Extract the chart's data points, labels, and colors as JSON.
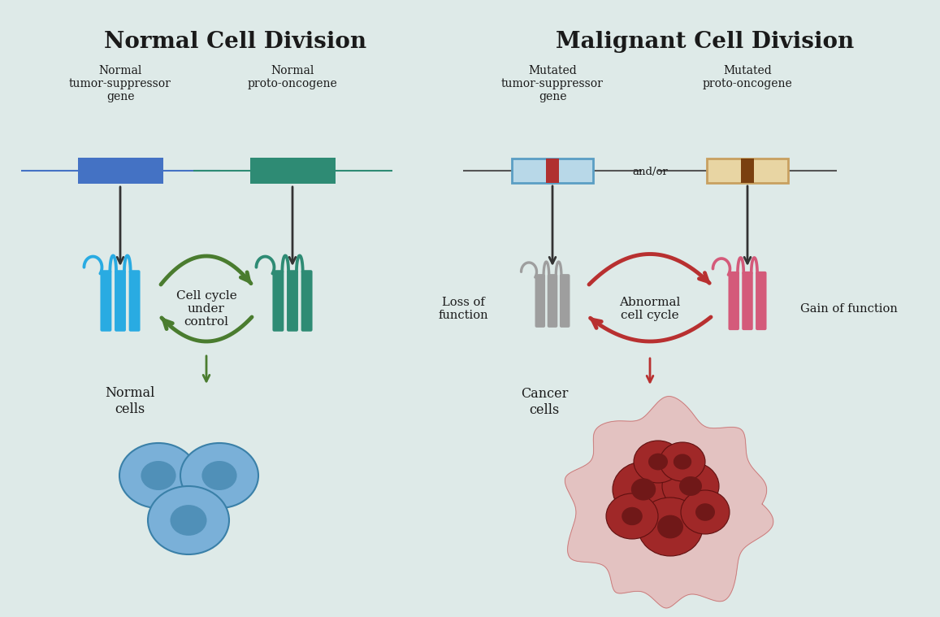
{
  "bg_color": "#deeae8",
  "title_left": "Normal Cell Division",
  "title_right": "Malignant Cell Division",
  "title_fontsize": 20,
  "title_fontweight": "bold",
  "label_normal_tsg": "Normal\ntumor-suppressor\ngene",
  "label_normal_proto": "Normal\nproto-oncogene",
  "label_mutated_tsg": "Mutated\ntumor-suppressor\ngene",
  "label_mutated_proto": "Mutated\nproto-oncogene",
  "label_cell_cycle_normal": "Cell cycle\nunder\ncontrol",
  "label_cell_cycle_abnormal": "Abnormal\ncell cycle",
  "label_normal_cells": "Normal\ncells",
  "label_cancer_cells": "Cancer\ncells",
  "label_loss_of_function": "Loss of\nfunction",
  "label_gain_of_function": "Gain of function",
  "label_and_or": "and/or",
  "color_normal_tsg": "#4472c4",
  "color_normal_proto": "#2e8b74",
  "color_mutated_tsg_bg": "#b8d8e8",
  "color_mutated_tsg_border": "#5a9ec4",
  "color_mutated_tsg_stripe": "#b03030",
  "color_mutated_proto_bg": "#e8d5a3",
  "color_mutated_proto_border": "#c8a060",
  "color_mutated_proto_stripe": "#7a4010",
  "color_green_arrow": "#4a7c2f",
  "color_red_arrow": "#b83030",
  "color_blue_protein": "#29abe2",
  "color_teal_protein": "#2e8b74",
  "color_gray_protein": "#9e9e9e",
  "color_pink_protein": "#d45a7a",
  "color_normal_cell_body": "#7ab0d8",
  "color_normal_cell_nucleus": "#5090b8",
  "color_cancer_outer": "#e8a8a8",
  "color_cancer_inner": "#a02828",
  "color_cancer_nucleus": "#701818",
  "color_text": "#1a1a1a",
  "lw_gene_line": 1.5,
  "lw_arrow": 2.0,
  "lw_cycle_arrow": 3.5
}
